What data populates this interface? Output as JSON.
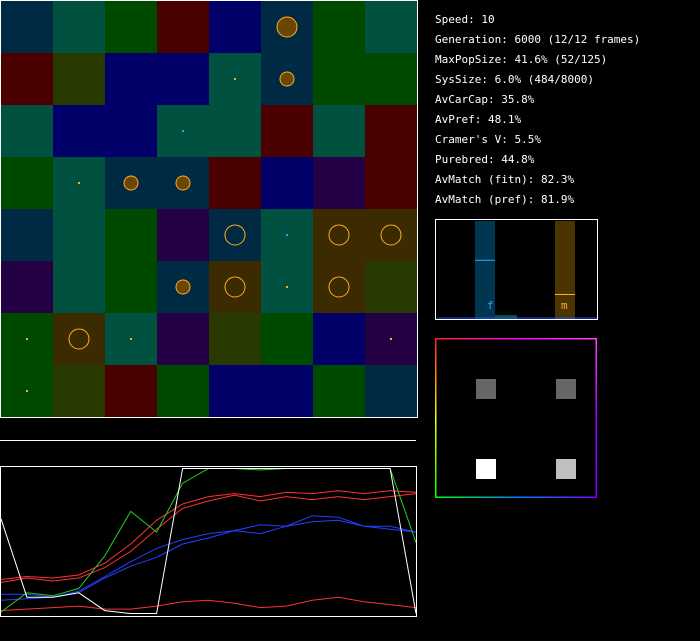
{
  "stats": {
    "speed": "Speed: 10",
    "generation": "Generation: 6000 (12/12 frames)",
    "max_pop_size": "MaxPopSize: 41.6% (52/125)",
    "sys_size": "SysSize: 6.0% (484/8000)",
    "av_car_cap": "AvCarCap: 35.8%",
    "av_pref": "AvPref: 48.1%",
    "cramers_v": "Cramer's V: 5.5%",
    "purebred": "Purebred: 44.8%",
    "av_match_fitn": "AvMatch (fitn): 82.3%",
    "av_match_pref": "AvMatch (pref): 81.9%"
  },
  "colors": {
    "darkblue": "#002a44",
    "teal": "#00513f",
    "green": "#004a00",
    "maroon": "#4b0000",
    "navy": "#000068",
    "purple": "#240045",
    "olive": "#283a00",
    "brown": "#3c2a00",
    "circle": "#ffb020"
  },
  "grid": {
    "cols": 8,
    "rows": 8,
    "cells": [
      [
        "darkblue",
        "teal",
        "green",
        "maroon",
        "navy",
        "darkblue",
        "green",
        "teal"
      ],
      [
        "maroon",
        "olive",
        "navy",
        "navy",
        "teal",
        "darkblue",
        "green",
        "green"
      ],
      [
        "teal",
        "navy",
        "navy",
        "teal",
        "teal",
        "maroon",
        "teal",
        "maroon"
      ],
      [
        "green",
        "teal",
        "darkblue",
        "darkblue",
        "maroon",
        "navy",
        "purple",
        "maroon"
      ],
      [
        "darkblue",
        "teal",
        "green",
        "purple",
        "darkblue",
        "teal",
        "brown",
        "brown"
      ],
      [
        "purple",
        "teal",
        "green",
        "darkblue",
        "brown",
        "teal",
        "brown",
        "olive"
      ],
      [
        "green",
        "brown",
        "teal",
        "purple",
        "olive",
        "green",
        "navy",
        "purple"
      ],
      [
        "green",
        "olive",
        "maroon",
        "green",
        "navy",
        "navy",
        "green",
        "darkblue"
      ]
    ],
    "markers": [
      {
        "r": 0,
        "c": 5,
        "size": "big"
      },
      {
        "r": 1,
        "c": 4,
        "size": "dot"
      },
      {
        "r": 1,
        "c": 5,
        "size": "med"
      },
      {
        "r": 2,
        "c": 3,
        "size": "dot-blue"
      },
      {
        "r": 3,
        "c": 1,
        "size": "dot"
      },
      {
        "r": 3,
        "c": 2,
        "size": "med"
      },
      {
        "r": 3,
        "c": 3,
        "size": "med"
      },
      {
        "r": 4,
        "c": 4,
        "size": "big"
      },
      {
        "r": 4,
        "c": 5,
        "size": "dot-blue"
      },
      {
        "r": 4,
        "c": 6,
        "size": "big"
      },
      {
        "r": 4,
        "c": 7,
        "size": "big"
      },
      {
        "r": 5,
        "c": 3,
        "size": "med"
      },
      {
        "r": 5,
        "c": 4,
        "size": "big"
      },
      {
        "r": 5,
        "c": 5,
        "size": "dot"
      },
      {
        "r": 5,
        "c": 6,
        "size": "big"
      },
      {
        "r": 6,
        "c": 0,
        "size": "dot"
      },
      {
        "r": 6,
        "c": 1,
        "size": "big"
      },
      {
        "r": 6,
        "c": 2,
        "size": "dot"
      },
      {
        "r": 6,
        "c": 7,
        "size": "dot"
      },
      {
        "r": 7,
        "c": 0,
        "size": "dot"
      }
    ]
  },
  "histogram": {
    "label_f": "f",
    "label_m": "m",
    "f_level": 0.6,
    "m_level": 0.25
  },
  "matrix": {
    "cells": [
      {
        "r": 0,
        "c": 0,
        "v": 0.4
      },
      {
        "r": 0,
        "c": 1,
        "v": 0.4
      },
      {
        "r": 1,
        "c": 0,
        "v": 1.0
      },
      {
        "r": 1,
        "c": 1,
        "v": 0.75
      }
    ]
  },
  "graph": {
    "series": [
      {
        "color": "#ff3030",
        "values": [
          0.24,
          0.26,
          0.25,
          0.27,
          0.35,
          0.48,
          0.64,
          0.75,
          0.8,
          0.82,
          0.8,
          0.83,
          0.82,
          0.84,
          0.82,
          0.84,
          0.83
        ]
      },
      {
        "color": "#ff3030",
        "values": [
          0.22,
          0.25,
          0.23,
          0.25,
          0.32,
          0.43,
          0.58,
          0.72,
          0.77,
          0.81,
          0.77,
          0.8,
          0.78,
          0.8,
          0.78,
          0.8,
          0.82
        ]
      },
      {
        "color": "#ff3030",
        "values": [
          0.03,
          0.04,
          0.05,
          0.06,
          0.04,
          0.04,
          0.06,
          0.09,
          0.1,
          0.08,
          0.05,
          0.06,
          0.1,
          0.12,
          0.09,
          0.07,
          0.05
        ]
      },
      {
        "color": "#2040ff",
        "values": [
          0.1,
          0.11,
          0.12,
          0.15,
          0.25,
          0.33,
          0.39,
          0.48,
          0.52,
          0.57,
          0.55,
          0.6,
          0.63,
          0.64,
          0.6,
          0.58,
          0.56
        ]
      },
      {
        "color": "#2040ff",
        "values": [
          0.14,
          0.14,
          0.12,
          0.16,
          0.26,
          0.36,
          0.45,
          0.51,
          0.55,
          0.57,
          0.61,
          0.6,
          0.67,
          0.66,
          0.6,
          0.6,
          0.56
        ]
      },
      {
        "color": "#20d020",
        "values": [
          0.02,
          0.15,
          0.13,
          0.18,
          0.4,
          0.7,
          0.56,
          0.89,
          0.99,
          0.99,
          0.98,
          0.99,
          0.99,
          0.99,
          0.99,
          0.99,
          0.49
        ]
      },
      {
        "color": "#ffffff",
        "values": [
          0.65,
          0.12,
          0.12,
          0.15,
          0.03,
          0.01,
          0.01,
          0.99,
          0.99,
          0.99,
          0.99,
          0.99,
          0.99,
          0.99,
          0.99,
          0.99,
          0.01
        ]
      }
    ]
  }
}
